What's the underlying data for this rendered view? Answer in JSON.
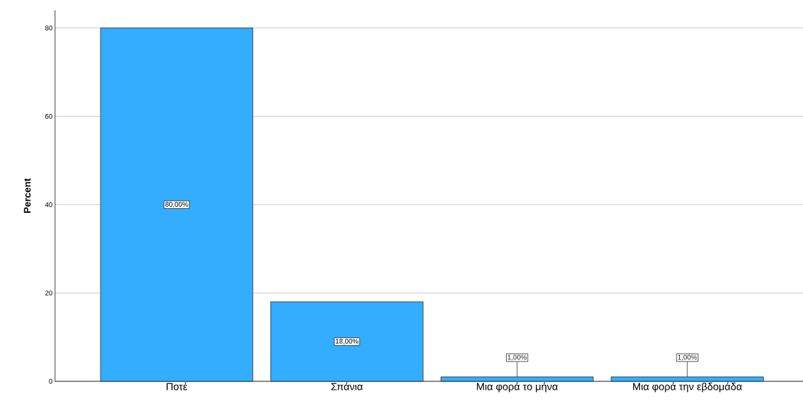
{
  "chart_data": {
    "type": "bar",
    "ylabel": "Percent",
    "categories": [
      "Ποτέ",
      "Σπάνια",
      "Μια φορά το μήνα",
      "Μια φορά την εβδομάδα"
    ],
    "values": [
      80,
      18,
      1,
      1
    ],
    "value_labels": [
      "80,00%",
      "18,00%",
      "1,00%",
      "1,00%"
    ],
    "color": "#33adff",
    "ylim": [
      0,
      84
    ],
    "yticks": [
      0,
      20,
      40,
      60,
      80
    ],
    "grid": "y"
  }
}
